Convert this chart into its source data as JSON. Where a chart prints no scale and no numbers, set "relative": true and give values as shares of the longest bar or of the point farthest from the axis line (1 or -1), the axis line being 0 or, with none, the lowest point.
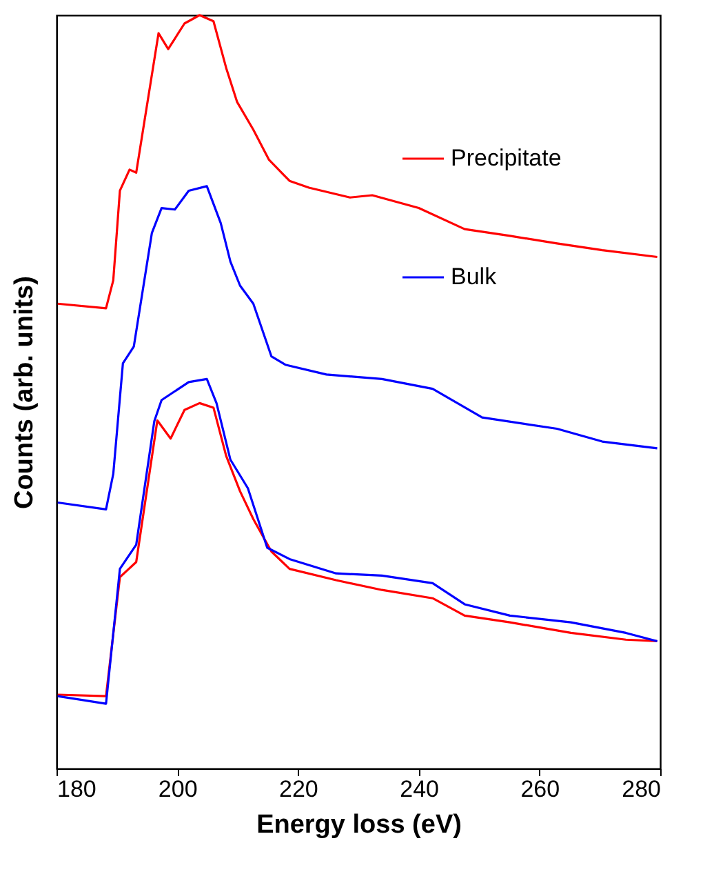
{
  "chart_data": {
    "type": "line",
    "relative": true,
    "xlabel": "Energy loss (eV)",
    "ylabel": "Counts (arb. units)",
    "xlim": [
      180,
      280
    ],
    "xticks": [
      180,
      200,
      220,
      240,
      260,
      280
    ],
    "legend": "top right",
    "grid": false,
    "marker": "none",
    "line_style": "solid",
    "series": [
      {
        "name": "Precipitate",
        "color": "#ff0000",
        "x": [
          180.2,
          188.2,
          189.4,
          190.5,
          192.1,
          193.2,
          194.6,
          196.9,
          198.5,
          201.2,
          203.7,
          206.0,
          208.1,
          209.9,
          212.6,
          215.2,
          218.6,
          221.8,
          228.6,
          232.3,
          240.0,
          247.6,
          255.1,
          262.9,
          270.4,
          279.5
        ],
        "values": [
          0.617,
          0.611,
          0.648,
          0.767,
          0.795,
          0.791,
          0.861,
          0.976,
          0.955,
          0.989,
          1,
          0.992,
          0.93,
          0.885,
          0.848,
          0.808,
          0.78,
          0.771,
          0.758,
          0.761,
          0.744,
          0.716,
          0.707,
          0.697,
          0.688,
          0.679
        ]
      },
      {
        "name": "Bulk",
        "color": "#0000ff",
        "x": [
          180.2,
          188.2,
          189.4,
          191.0,
          192.8,
          195.8,
          197.4,
          199.6,
          201.9,
          204.9,
          207.2,
          208.8,
          210.4,
          212.6,
          215.6,
          217.9,
          224.7,
          233.9,
          242.3,
          250.5,
          262.9,
          270.4,
          279.5
        ],
        "values": [
          0.353,
          0.344,
          0.391,
          0.538,
          0.56,
          0.711,
          0.744,
          0.742,
          0.767,
          0.773,
          0.724,
          0.673,
          0.641,
          0.617,
          0.547,
          0.536,
          0.523,
          0.517,
          0.504,
          0.466,
          0.451,
          0.434,
          0.425
        ]
      },
      {
        "color": "#ff0000",
        "x": [
          180.2,
          188.2,
          190.5,
          193.2,
          196.7,
          198.9,
          201.2,
          203.7,
          206.0,
          208.1,
          210.4,
          212.6,
          215.6,
          218.6,
          226.3,
          233.9,
          242.3,
          247.6,
          255.1,
          265.2,
          274.3,
          279.5
        ],
        "values": [
          0.098,
          0.096,
          0.254,
          0.274,
          0.462,
          0.438,
          0.476,
          0.485,
          0.479,
          0.415,
          0.368,
          0.331,
          0.288,
          0.265,
          0.25,
          0.237,
          0.226,
          0.203,
          0.194,
          0.18,
          0.171,
          0.169
        ]
      },
      {
        "color": "#0000ff",
        "x": [
          180.2,
          188.2,
          190.5,
          193.2,
          196.2,
          197.4,
          201.9,
          204.9,
          206.5,
          208.8,
          211.7,
          214.9,
          218.6,
          226.3,
          233.9,
          242.3,
          247.6,
          255.1,
          265.2,
          274.3,
          279.5
        ],
        "values": [
          0.096,
          0.086,
          0.265,
          0.297,
          0.461,
          0.489,
          0.513,
          0.517,
          0.485,
          0.41,
          0.372,
          0.293,
          0.278,
          0.259,
          0.256,
          0.246,
          0.218,
          0.203,
          0.194,
          0.18,
          0.169
        ]
      }
    ]
  }
}
